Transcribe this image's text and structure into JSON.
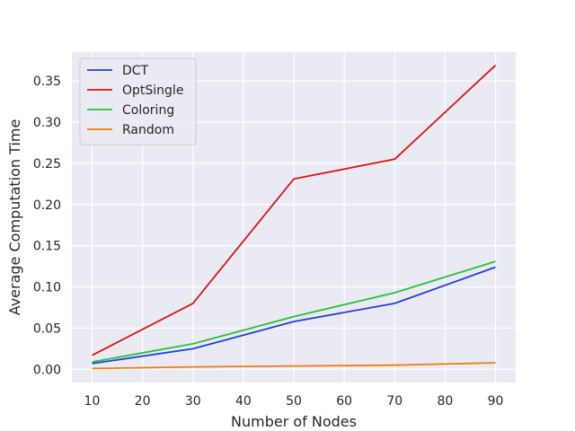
{
  "chart_data": {
    "type": "line",
    "title": "",
    "xlabel": "Number of Nodes",
    "ylabel": "Average Computation Time",
    "x": [
      10,
      30,
      50,
      70,
      90
    ],
    "xlim": [
      6,
      94
    ],
    "ylim": [
      -0.016,
      0.385
    ],
    "xticks": [
      10,
      20,
      30,
      40,
      50,
      60,
      70,
      80,
      90
    ],
    "yticks": [
      0.0,
      0.05,
      0.1,
      0.15,
      0.2,
      0.25,
      0.3,
      0.35
    ],
    "ytick_labels": [
      "0.00",
      "0.05",
      "0.10",
      "0.15",
      "0.20",
      "0.25",
      "0.30",
      "0.35"
    ],
    "grid": true,
    "legend_position": "top-left",
    "series": [
      {
        "name": "DCT",
        "color": "#1f3fd8",
        "values": [
          0.007,
          0.025,
          0.058,
          0.08,
          0.124
        ]
      },
      {
        "name": "OptSingle",
        "color": "#d91515",
        "values": [
          0.017,
          0.08,
          0.231,
          0.255,
          0.369
        ]
      },
      {
        "name": "Coloring",
        "color": "#27c13a",
        "values": [
          0.009,
          0.031,
          0.064,
          0.093,
          0.131
        ]
      },
      {
        "name": "Random",
        "color": "#f27c0f",
        "values": [
          0.001,
          0.003,
          0.004,
          0.005,
          0.008
        ]
      }
    ]
  }
}
